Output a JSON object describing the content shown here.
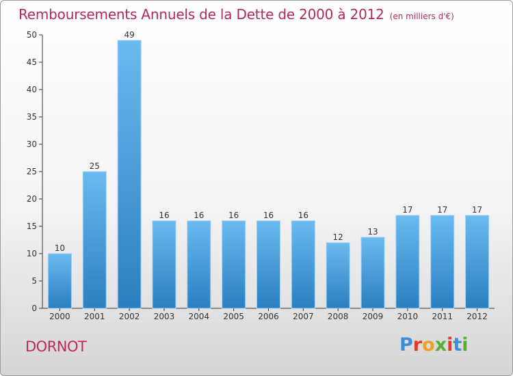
{
  "header": {
    "title": "Remboursements Annuels de la Dette de 2000 à 2012",
    "subtitle": "(en milliers d'€)"
  },
  "footer": {
    "place": "DORNOT",
    "logo_text": "Proxiti",
    "logo_colors": [
      "#3a8fd8",
      "#e23a2a",
      "#f0a020",
      "#58b030",
      "#e23a2a",
      "#3a8fd8",
      "#58b030"
    ]
  },
  "colors": {
    "bar": "#4aa3e6",
    "bar_light": "#6bbaf0",
    "bar_dark": "#2a7fc0",
    "axis": "#333333",
    "grid": "#d8d8d8"
  },
  "chart_data": {
    "type": "bar",
    "categories": [
      "2000",
      "2001",
      "2002",
      "2003",
      "2004",
      "2005",
      "2006",
      "2007",
      "2008",
      "2009",
      "2010",
      "2011",
      "2012"
    ],
    "values": [
      10,
      25,
      49,
      16,
      16,
      16,
      16,
      16,
      12,
      13,
      17,
      17,
      17
    ],
    "data_labels": [
      "10",
      "25",
      "49",
      "16",
      "16",
      "16",
      "16",
      "16",
      "12",
      "13",
      "17",
      "17",
      "17"
    ],
    "yticks": [
      0,
      5,
      10,
      15,
      20,
      25,
      30,
      35,
      40,
      45,
      50
    ],
    "ylim": [
      0,
      50
    ],
    "grid": false
  }
}
